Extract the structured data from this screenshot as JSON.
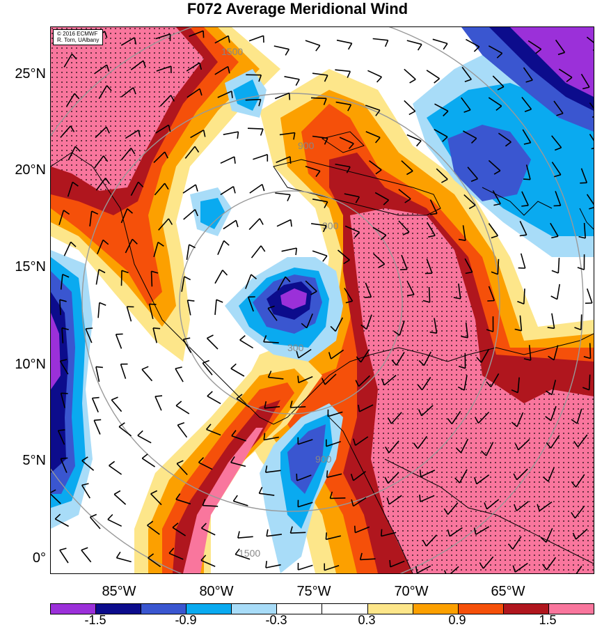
{
  "title": "F072 Average Meridional Wind",
  "credit": {
    "line1": "© 2016 ECMWF",
    "line2": "R. Torn, UAlbany"
  },
  "map": {
    "lon_range": [
      -88.5,
      -60.5
    ],
    "lat_range": [
      -0.5,
      27.0
    ],
    "storm_center": {
      "lon": -76.5,
      "lat": 14.0
    },
    "range_ring_labels": [
      "300",
      "900",
      "1500"
    ],
    "lat_labels": [
      "25°N",
      "20°N",
      "15°N",
      "10°N",
      "5°N",
      "0°"
    ],
    "lon_labels": [
      "85°W",
      "80°W",
      "75°W",
      "70°W",
      "65°W"
    ]
  },
  "colorbar": {
    "colors": [
      "#9b30d9",
      "#0c0c8c",
      "#3a56d0",
      "#0aaaf0",
      "#a8dcf8",
      "#ffffff",
      "#ffffff",
      "#fde68a",
      "#fca000",
      "#f5500a",
      "#b0161e",
      "#f9769d"
    ],
    "labels": [
      "-1.5",
      "-0.9",
      "-0.3",
      "0.3",
      "0.9",
      "1.5"
    ]
  },
  "chart_data": {
    "type": "heatmap",
    "title": "F072 Average Meridional Wind",
    "levels": [
      -2.1,
      -1.8,
      -1.5,
      -1.2,
      -0.9,
      -0.6,
      -0.3,
      0.0,
      0.3,
      0.6,
      0.9,
      1.2,
      1.5,
      1.8
    ],
    "x_ticks": [
      "85°W",
      "80°W",
      "75°W",
      "70°W",
      "65°W"
    ],
    "y_ticks": [
      "25°N",
      "20°N",
      "15°N",
      "10°N",
      "5°N",
      "0°"
    ],
    "features": [
      {
        "name": "positive band east of center",
        "lon": -70,
        "lat": 12,
        "value": 1.8
      },
      {
        "name": "positive region northwest",
        "lon": -85,
        "lat": 24,
        "value": 1.8
      },
      {
        "name": "negative core at center",
        "lon": -76.5,
        "lat": 14,
        "value": -1.8
      },
      {
        "name": "negative region northeast",
        "lon": -68,
        "lat": 21,
        "value": -1.2
      },
      {
        "name": "negative region south",
        "lon": -75,
        "lat": 6,
        "value": -1.2
      },
      {
        "name": "negative region west edge",
        "lon": -88,
        "lat": 8,
        "value": -1.8
      }
    ]
  }
}
